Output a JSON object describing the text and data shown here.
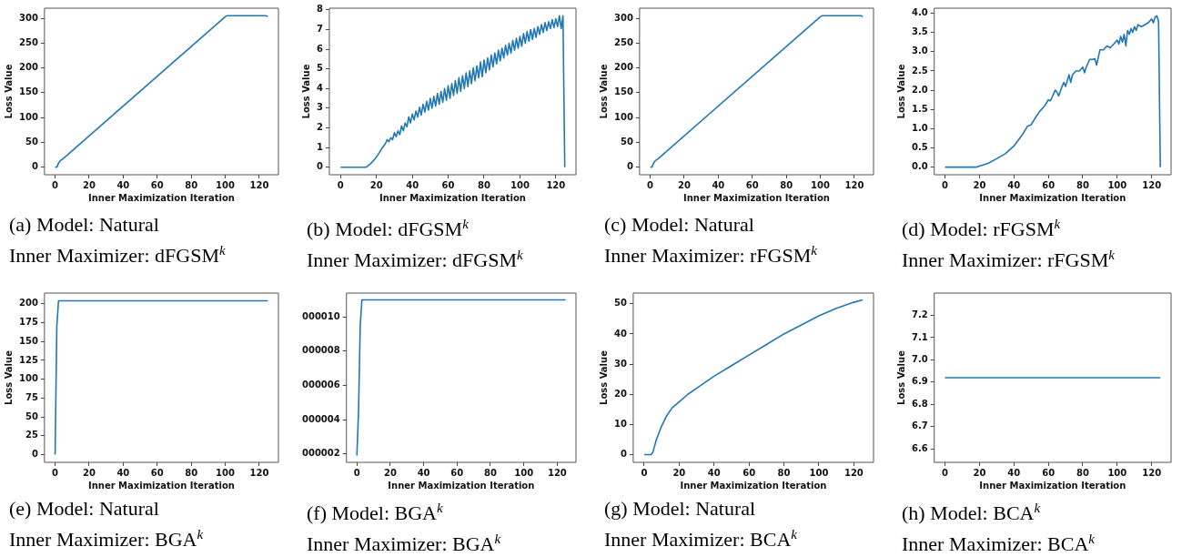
{
  "chart_data": [
    {
      "type": "line",
      "title": "(a) Model: Natural",
      "subtitle": "Inner Maximizer: dFGSM$^{k}$",
      "xlabel": "Inner Maximization Iteration",
      "ylabel": "Loss Value",
      "color": "#1f77b4",
      "x": [
        0,
        1,
        2,
        3,
        5,
        100,
        101,
        124,
        125
      ],
      "values": [
        0,
        0,
        8,
        13,
        18,
        303,
        305,
        305,
        303
      ],
      "xlim": [
        -6.25,
        131.25
      ],
      "xticks": [
        0,
        20,
        40,
        60,
        80,
        100,
        120
      ],
      "ylim": [
        -15.25,
        320.25
      ],
      "yticks": [
        0,
        50,
        100,
        150,
        200,
        250,
        300
      ]
    },
    {
      "type": "line",
      "title": "(b) Model: dFGSM$^{k}$",
      "subtitle": "Inner Maximizer: dFGSM$^{k}$",
      "xlabel": "Inner Maximization Iteration",
      "ylabel": "Loss Value",
      "color": "#1f77b4",
      "x": [
        0,
        14,
        15,
        17,
        19,
        21,
        23,
        25,
        26,
        27,
        28,
        29,
        30,
        31,
        32,
        33,
        34,
        35,
        36,
        37,
        38,
        39,
        40,
        41,
        42,
        43,
        44,
        45,
        46,
        47,
        48,
        49,
        50,
        51,
        52,
        53,
        54,
        55,
        56,
        57,
        58,
        59,
        60,
        61,
        62,
        63,
        64,
        65,
        66,
        67,
        68,
        69,
        70,
        71,
        72,
        73,
        74,
        75,
        76,
        77,
        78,
        79,
        80,
        81,
        82,
        83,
        84,
        85,
        86,
        87,
        88,
        89,
        90,
        91,
        92,
        93,
        94,
        95,
        96,
        97,
        98,
        99,
        100,
        101,
        102,
        103,
        104,
        105,
        106,
        107,
        108,
        109,
        110,
        111,
        112,
        113,
        114,
        115,
        116,
        117,
        118,
        119,
        120,
        121,
        122,
        123,
        124,
        125
      ],
      "values": [
        0,
        0,
        0.05,
        0.2,
        0.4,
        0.65,
        0.95,
        1.2,
        1.4,
        1.3,
        1.5,
        1.4,
        1.75,
        1.55,
        1.85,
        1.65,
        2.1,
        1.85,
        2.25,
        2.05,
        2.55,
        2.25,
        2.7,
        2.4,
        2.85,
        2.55,
        3.05,
        2.65,
        3.2,
        2.8,
        3.35,
        2.9,
        3.5,
        3.0,
        3.6,
        3.1,
        3.75,
        3.2,
        3.85,
        3.3,
        4.0,
        3.4,
        4.15,
        3.5,
        4.25,
        3.65,
        4.4,
        3.75,
        4.55,
        3.85,
        4.65,
        4.0,
        4.8,
        4.1,
        4.9,
        4.25,
        5.05,
        4.4,
        5.15,
        4.55,
        5.35,
        4.6,
        5.45,
        4.8,
        5.55,
        4.95,
        5.7,
        5.1,
        5.8,
        5.25,
        5.95,
        5.4,
        6.05,
        5.55,
        6.2,
        5.7,
        6.3,
        5.8,
        6.45,
        5.95,
        6.55,
        6.05,
        6.65,
        6.15,
        6.8,
        6.3,
        6.9,
        6.4,
        7.0,
        6.5,
        7.05,
        6.6,
        7.15,
        6.75,
        7.25,
        6.85,
        7.35,
        6.95,
        7.4,
        7.05,
        7.5,
        7.1,
        7.55,
        7.15,
        7.7,
        7.05,
        7.7,
        0
      ],
      "xlim": [
        -6.25,
        131.25
      ],
      "xticks": [
        0,
        20,
        40,
        60,
        80,
        100,
        120
      ],
      "ylim": [
        -0.385,
        8.085
      ],
      "yticks": [
        0,
        1,
        2,
        3,
        4,
        5,
        6,
        7,
        8
      ]
    },
    {
      "type": "line",
      "title": "(c) Model: Natural",
      "subtitle": "Inner Maximizer: rFGSM$^{k}$",
      "xlabel": "Inner Maximization Iteration",
      "ylabel": "Loss Value",
      "color": "#1f77b4",
      "x": [
        0,
        1,
        2,
        3,
        5,
        100,
        101,
        124,
        125
      ],
      "values": [
        0,
        0,
        8,
        13,
        18,
        303,
        305,
        305,
        303
      ],
      "xlim": [
        -6.25,
        131.25
      ],
      "xticks": [
        0,
        20,
        40,
        60,
        80,
        100,
        120
      ],
      "ylim": [
        -15.25,
        320.25
      ],
      "yticks": [
        0,
        50,
        100,
        150,
        200,
        250,
        300
      ]
    },
    {
      "type": "line",
      "title": "(d) Model: rFGSM$^{k}$",
      "subtitle": "Inner Maximizer: rFGSM$^{k}$",
      "xlabel": "Inner Maximization Iteration",
      "ylabel": "Loss Value",
      "color": "#1f77b4",
      "x": [
        0,
        18,
        20,
        25,
        30,
        35,
        40,
        45,
        48,
        50,
        52,
        55,
        58,
        60,
        61,
        62,
        64,
        65,
        66,
        68,
        69,
        70,
        72,
        73,
        74,
        76,
        78,
        80,
        81,
        82,
        84,
        86,
        87,
        88,
        90,
        92,
        94,
        96,
        98,
        100,
        101,
        102,
        103,
        104,
        105,
        106,
        107,
        108,
        109,
        110,
        111,
        112,
        114,
        116,
        118,
        120,
        121,
        122,
        123,
        124,
        125
      ],
      "values": [
        0,
        0,
        0.03,
        0.1,
        0.22,
        0.35,
        0.55,
        0.85,
        1.07,
        1.1,
        1.25,
        1.45,
        1.6,
        1.75,
        1.72,
        1.8,
        2.0,
        1.95,
        1.85,
        2.1,
        2.2,
        2.1,
        2.4,
        2.2,
        2.4,
        2.5,
        2.5,
        2.6,
        2.45,
        2.6,
        2.8,
        2.8,
        2.82,
        2.65,
        3.05,
        3.05,
        3.15,
        3.1,
        3.2,
        3.3,
        3.2,
        3.4,
        3.25,
        3.45,
        3.15,
        3.55,
        3.45,
        3.6,
        3.5,
        3.65,
        3.55,
        3.7,
        3.65,
        3.7,
        3.75,
        3.85,
        3.75,
        3.9,
        3.93,
        3.78,
        0
      ],
      "xlim": [
        -6.25,
        131.25
      ],
      "xticks": [
        0,
        20,
        40,
        60,
        80,
        100,
        120
      ],
      "ylim": [
        -0.197,
        4.13
      ],
      "yticks": [
        {
          "value": 0,
          "label": "0.0"
        },
        0.5,
        {
          "value": 1,
          "label": "1.0"
        },
        1.5,
        {
          "value": 2,
          "label": "2.0"
        },
        2.5,
        {
          "value": 3,
          "label": "3.0"
        },
        3.5,
        {
          "value": 4,
          "label": "4.0"
        }
      ]
    },
    {
      "type": "line",
      "title": "(e) Model: Natural",
      "subtitle": "Inner Maximizer: BGA$^{k}$",
      "xlabel": "Inner Maximization Iteration",
      "ylabel": "Loss Value",
      "color": "#1f77b4",
      "x": [
        0,
        1,
        2,
        125
      ],
      "values": [
        0,
        170,
        204,
        204
      ],
      "xlim": [
        -6.25,
        131.25
      ],
      "xticks": [
        0,
        20,
        40,
        60,
        80,
        100,
        120
      ],
      "ylim": [
        -10.2,
        214.2
      ],
      "yticks": [
        0,
        25,
        50,
        75,
        100,
        125,
        150,
        175,
        200
      ]
    },
    {
      "type": "line",
      "title": "(f) Model: BGA$^{k}$",
      "subtitle": "Inner Maximizer: BGA$^{k}$",
      "xlabel": "Inner Maximization Iteration",
      "color": "#1f77b4",
      "x": [
        0,
        1,
        2,
        3,
        125
      ],
      "values": [
        1.9,
        4.5,
        9.5,
        11,
        11
      ],
      "xlim": [
        -6.25,
        131.25
      ],
      "xticks": [
        0,
        20,
        40,
        60,
        80,
        100,
        120
      ],
      "ylim": [
        1.5,
        11.4
      ],
      "yticks": [
        {
          "value": 2,
          "label": "000002"
        },
        {
          "value": 4,
          "label": "000004"
        },
        {
          "value": 6,
          "label": "000006"
        },
        {
          "value": 8,
          "label": "000008"
        },
        {
          "value": 10,
          "label": "000010"
        }
      ]
    },
    {
      "type": "line",
      "title": "(g) Model: Natural",
      "subtitle": "Inner Maximizer: BCA$^{k}$",
      "xlabel": "Inner Maximization Iteration",
      "ylabel": "Loss Value",
      "color": "#1f77b4",
      "x": [
        0,
        4,
        5,
        7,
        10,
        13,
        16,
        20,
        25,
        30,
        40,
        50,
        60,
        70,
        80,
        90,
        100,
        110,
        120,
        125
      ],
      "values": [
        0,
        0,
        0.8,
        5,
        9.5,
        13,
        15.5,
        17.5,
        20,
        22,
        26,
        29.5,
        33,
        36.5,
        40,
        43,
        46,
        48.5,
        50.5,
        51.3
      ],
      "xlim": [
        -6.25,
        131.25
      ],
      "xticks": [
        0,
        20,
        40,
        60,
        80,
        100,
        120
      ],
      "ylim": [
        -2.55,
        53.55
      ],
      "yticks": [
        0,
        10,
        20,
        30,
        40,
        50
      ]
    },
    {
      "type": "line",
      "title": "(h) Model: BCA$^{k}$",
      "subtitle": "Inner Maximizer: BCA$^{k}$",
      "xlabel": "Inner Maximization Iteration",
      "ylabel": "Loss Value",
      "color": "#1f77b4",
      "x": [
        0,
        125
      ],
      "values": [
        6.92,
        6.92
      ],
      "xlim": [
        -6.25,
        131.25
      ],
      "xticks": [
        0,
        20,
        40,
        60,
        80,
        100,
        120
      ],
      "ylim": [
        6.54,
        7.3
      ],
      "yticks": [
        6.6,
        6.7,
        6.8,
        6.9,
        {
          "value": 7,
          "label": "7.0"
        },
        7.1,
        7.2
      ]
    }
  ]
}
